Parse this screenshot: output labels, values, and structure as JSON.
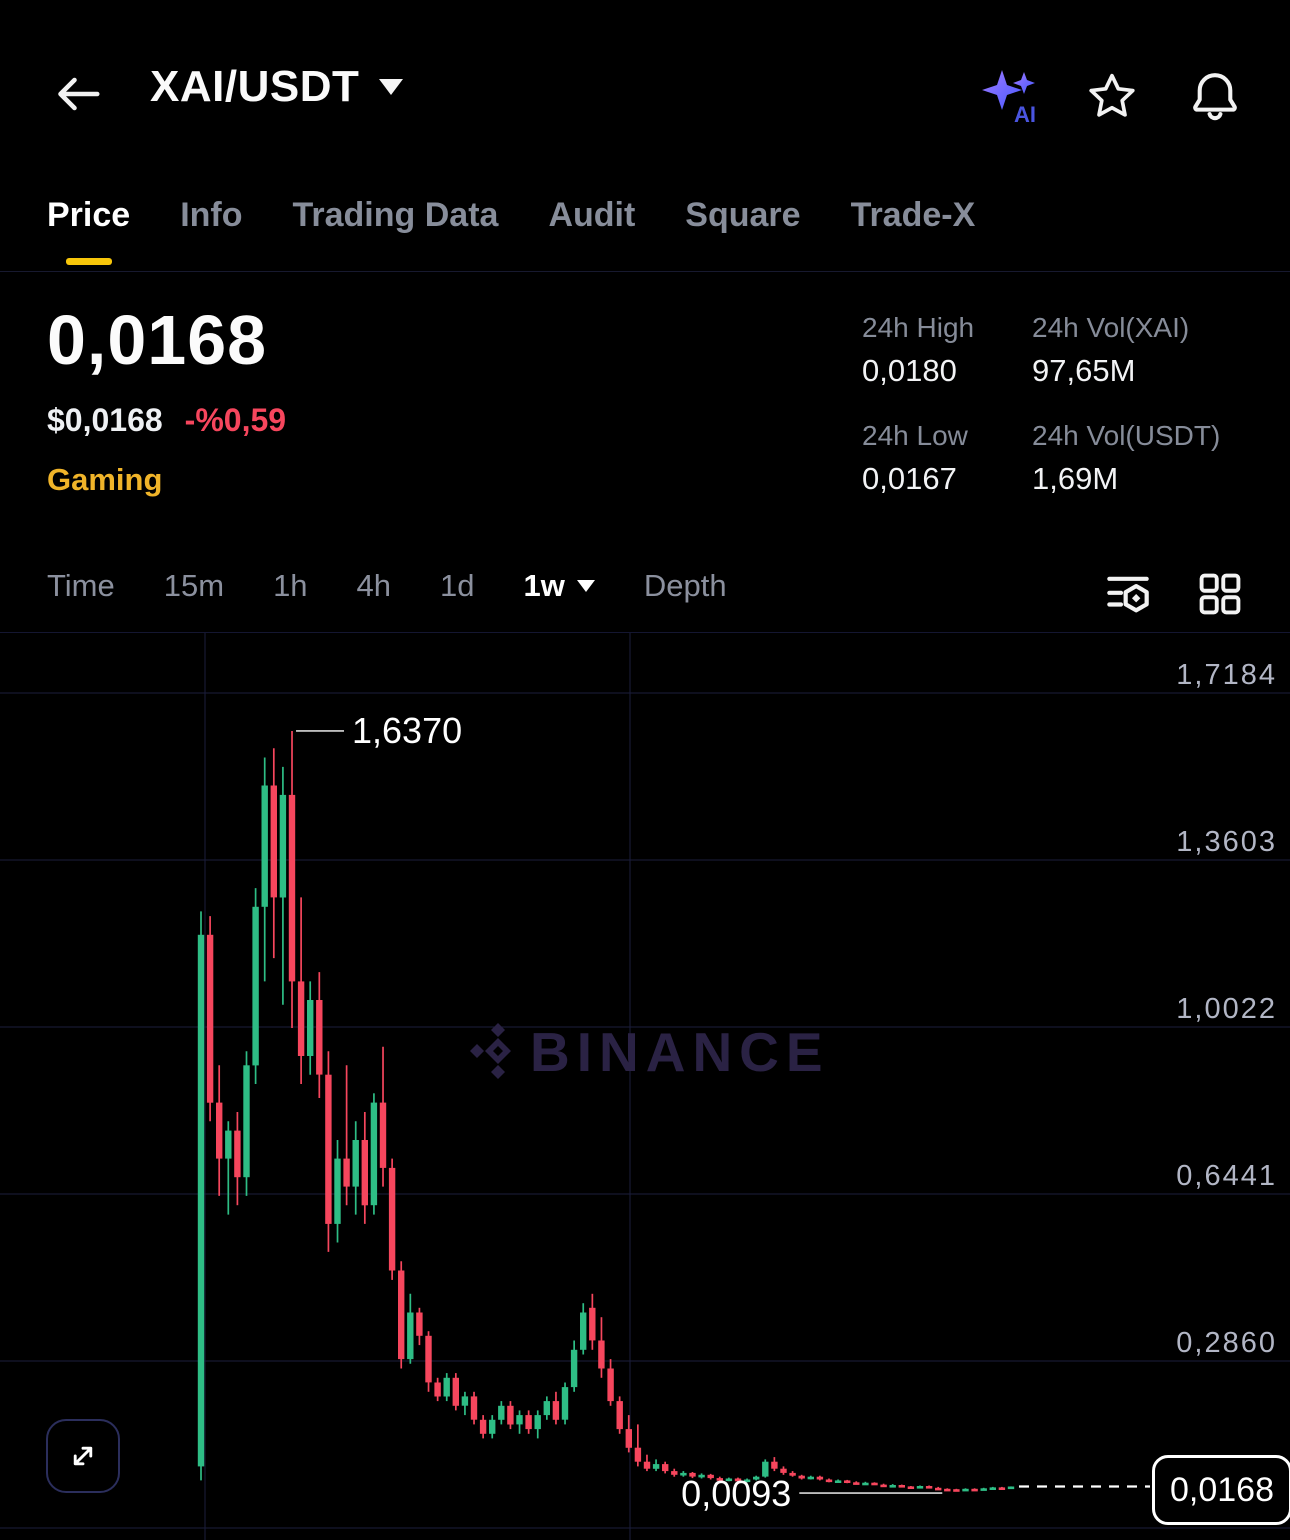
{
  "header": {
    "title": "XAI/USDT",
    "icons": {
      "ai": "ai-sparkle-icon",
      "favorite": "star-icon",
      "alerts": "bell-icon"
    }
  },
  "tabs": [
    {
      "label": "Price",
      "active": true
    },
    {
      "label": "Info",
      "active": false
    },
    {
      "label": "Trading Data",
      "active": false
    },
    {
      "label": "Audit",
      "active": false
    },
    {
      "label": "Square",
      "active": false
    },
    {
      "label": "Trade-X",
      "active": false
    }
  ],
  "price_panel": {
    "last_price": "0,0168",
    "usd_price": "$0,0168",
    "change_24h": "-%0,59",
    "category_tag": "Gaming",
    "change_color": "#f6465d",
    "tag_color": "#f0b429"
  },
  "stats": [
    {
      "label": "24h High",
      "value": "0,0180"
    },
    {
      "label": "24h Vol(XAI)",
      "value": "97,65M"
    },
    {
      "label": "24h Low",
      "value": "0,0167"
    },
    {
      "label": "24h Vol(USDT)",
      "value": "1,69M"
    }
  ],
  "toolbar": {
    "items": [
      "Time",
      "15m",
      "1h",
      "4h",
      "1d",
      "1w",
      "Depth"
    ],
    "selected": "1w"
  },
  "chart_data": {
    "type": "candlestick",
    "timeframe": "1w",
    "watermark": "BINANCE",
    "y_axis_labels": [
      "1,7184",
      "1,3603",
      "1,0022",
      "0,6441",
      "0,2860"
    ],
    "y_axis_values": [
      1.7184,
      1.3603,
      1.0022,
      0.6441,
      0.286
    ],
    "high_annotation": {
      "label": "1,6370",
      "value": 1.637
    },
    "low_annotation": {
      "label": "0,0093",
      "value": 0.0093
    },
    "last_price": {
      "label": "0,0168",
      "value": 0.0168
    },
    "up_color": "#2ebd85",
    "down_color": "#f6465d",
    "grid_color": "#1b1e3c",
    "axis_text_color": "#b2b6c5",
    "vertical_gridlines_x": [
      205,
      630
    ],
    "candles": [
      [
        0.06,
        1.25,
        0.03,
        1.2
      ],
      [
        1.2,
        1.24,
        0.8,
        0.84
      ],
      [
        0.84,
        0.92,
        0.64,
        0.72
      ],
      [
        0.72,
        0.8,
        0.6,
        0.78
      ],
      [
        0.78,
        0.82,
        0.62,
        0.68
      ],
      [
        0.68,
        0.95,
        0.64,
        0.92
      ],
      [
        0.92,
        1.3,
        0.88,
        1.26
      ],
      [
        1.26,
        1.58,
        1.1,
        1.52
      ],
      [
        1.52,
        1.6,
        1.15,
        1.28
      ],
      [
        1.28,
        1.56,
        1.05,
        1.5
      ],
      [
        1.5,
        1.637,
        1.0,
        1.1
      ],
      [
        1.1,
        1.28,
        0.88,
        0.94
      ],
      [
        0.94,
        1.1,
        0.9,
        1.06
      ],
      [
        1.06,
        1.12,
        0.85,
        0.9
      ],
      [
        0.9,
        0.95,
        0.52,
        0.58
      ],
      [
        0.58,
        0.76,
        0.54,
        0.72
      ],
      [
        0.72,
        0.92,
        0.62,
        0.66
      ],
      [
        0.66,
        0.8,
        0.6,
        0.76
      ],
      [
        0.76,
        0.82,
        0.58,
        0.62
      ],
      [
        0.62,
        0.86,
        0.6,
        0.84
      ],
      [
        0.84,
        0.96,
        0.66,
        0.7
      ],
      [
        0.7,
        0.72,
        0.46,
        0.48
      ],
      [
        0.48,
        0.5,
        0.27,
        0.29
      ],
      [
        0.29,
        0.43,
        0.28,
        0.39
      ],
      [
        0.39,
        0.4,
        0.32,
        0.34
      ],
      [
        0.34,
        0.35,
        0.22,
        0.24
      ],
      [
        0.24,
        0.25,
        0.2,
        0.21
      ],
      [
        0.21,
        0.26,
        0.2,
        0.25
      ],
      [
        0.25,
        0.26,
        0.18,
        0.19
      ],
      [
        0.19,
        0.22,
        0.17,
        0.21
      ],
      [
        0.21,
        0.22,
        0.15,
        0.16
      ],
      [
        0.16,
        0.17,
        0.12,
        0.13
      ],
      [
        0.13,
        0.17,
        0.12,
        0.16
      ],
      [
        0.16,
        0.2,
        0.15,
        0.19
      ],
      [
        0.19,
        0.2,
        0.14,
        0.15
      ],
      [
        0.15,
        0.18,
        0.13,
        0.17
      ],
      [
        0.17,
        0.18,
        0.13,
        0.14
      ],
      [
        0.14,
        0.18,
        0.12,
        0.17
      ],
      [
        0.17,
        0.21,
        0.16,
        0.2
      ],
      [
        0.2,
        0.22,
        0.15,
        0.16
      ],
      [
        0.16,
        0.24,
        0.15,
        0.23
      ],
      [
        0.23,
        0.33,
        0.22,
        0.31
      ],
      [
        0.31,
        0.41,
        0.3,
        0.39
      ],
      [
        0.4,
        0.43,
        0.31,
        0.33
      ],
      [
        0.33,
        0.38,
        0.25,
        0.27
      ],
      [
        0.27,
        0.29,
        0.19,
        0.2
      ],
      [
        0.2,
        0.21,
        0.13,
        0.14
      ],
      [
        0.14,
        0.17,
        0.09,
        0.1
      ],
      [
        0.1,
        0.15,
        0.06,
        0.07
      ],
      [
        0.07,
        0.085,
        0.05,
        0.055
      ],
      [
        0.055,
        0.075,
        0.05,
        0.065
      ],
      [
        0.065,
        0.07,
        0.045,
        0.05
      ],
      [
        0.05,
        0.055,
        0.038,
        0.042
      ],
      [
        0.042,
        0.05,
        0.038,
        0.046
      ],
      [
        0.046,
        0.048,
        0.035,
        0.038
      ],
      [
        0.038,
        0.045,
        0.034,
        0.042
      ],
      [
        0.042,
        0.044,
        0.032,
        0.035
      ],
      [
        0.035,
        0.038,
        0.028,
        0.03
      ],
      [
        0.03,
        0.036,
        0.028,
        0.034
      ],
      [
        0.034,
        0.036,
        0.026,
        0.028
      ],
      [
        0.028,
        0.034,
        0.026,
        0.032
      ],
      [
        0.032,
        0.04,
        0.03,
        0.038
      ],
      [
        0.038,
        0.075,
        0.036,
        0.07
      ],
      [
        0.07,
        0.08,
        0.05,
        0.055
      ],
      [
        0.055,
        0.06,
        0.042,
        0.046
      ],
      [
        0.046,
        0.05,
        0.038,
        0.04
      ],
      [
        0.04,
        0.042,
        0.032,
        0.034
      ],
      [
        0.034,
        0.04,
        0.032,
        0.038
      ],
      [
        0.038,
        0.04,
        0.03,
        0.032
      ],
      [
        0.032,
        0.034,
        0.026,
        0.028
      ],
      [
        0.028,
        0.032,
        0.025,
        0.03
      ],
      [
        0.03,
        0.031,
        0.024,
        0.026
      ],
      [
        0.026,
        0.028,
        0.021,
        0.023
      ],
      [
        0.023,
        0.027,
        0.021,
        0.025
      ],
      [
        0.025,
        0.026,
        0.02,
        0.021
      ],
      [
        0.021,
        0.023,
        0.017,
        0.018
      ],
      [
        0.018,
        0.022,
        0.016,
        0.02
      ],
      [
        0.02,
        0.021,
        0.016,
        0.017
      ],
      [
        0.017,
        0.018,
        0.014,
        0.015
      ],
      [
        0.015,
        0.019,
        0.014,
        0.018
      ],
      [
        0.018,
        0.019,
        0.013,
        0.014
      ],
      [
        0.014,
        0.016,
        0.011,
        0.012
      ],
      [
        0.012,
        0.013,
        0.0093,
        0.01
      ],
      [
        0.011,
        0.012,
        0.0095,
        0.01
      ],
      [
        0.01,
        0.013,
        0.0095,
        0.012
      ],
      [
        0.012,
        0.013,
        0.01,
        0.011
      ],
      [
        0.011,
        0.014,
        0.01,
        0.013
      ],
      [
        0.013,
        0.016,
        0.012,
        0.015
      ],
      [
        0.015,
        0.016,
        0.013,
        0.014
      ],
      [
        0.014,
        0.017,
        0.013,
        0.0168
      ]
    ]
  }
}
